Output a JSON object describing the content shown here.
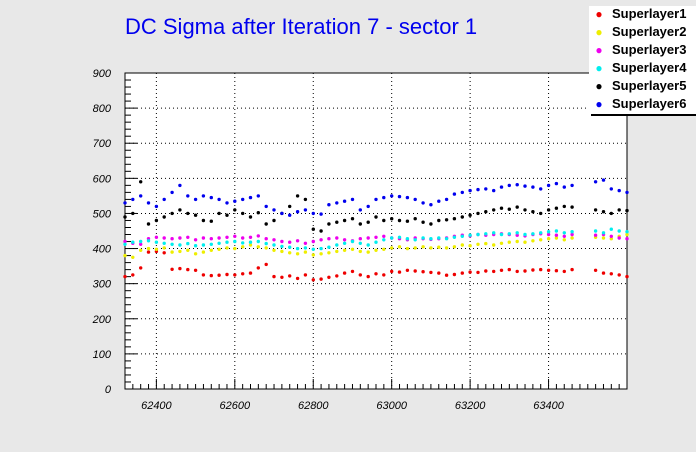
{
  "chart_data": {
    "type": "scatter",
    "title": "DC Sigma after Iteration 7 - sector 1",
    "xlabel": "",
    "ylabel": "",
    "xlim": [
      62320,
      63600
    ],
    "ylim": [
      0,
      900
    ],
    "x_ticks": [
      62400,
      62600,
      62800,
      63000,
      63200,
      63400
    ],
    "y_ticks": [
      0,
      100,
      200,
      300,
      400,
      500,
      600,
      700,
      800,
      900
    ],
    "grid": true,
    "legend_position": "top-right",
    "series": [
      {
        "name": "Superlayer1",
        "color": "#ee0000",
        "x": [
          62320,
          62340,
          62360,
          62380,
          62400,
          62420,
          62440,
          62460,
          62480,
          62500,
          62520,
          62540,
          62560,
          62580,
          62600,
          62620,
          62640,
          62660,
          62680,
          62700,
          62720,
          62740,
          62760,
          62780,
          62800,
          62820,
          62840,
          62860,
          62880,
          62900,
          62920,
          62940,
          62960,
          62980,
          63000,
          63020,
          63040,
          63060,
          63080,
          63100,
          63120,
          63140,
          63160,
          63180,
          63200,
          63220,
          63240,
          63260,
          63280,
          63300,
          63320,
          63340,
          63360,
          63380,
          63400,
          63420,
          63440,
          63460,
          63520,
          63540,
          63560,
          63580,
          63600
        ],
        "y": [
          320,
          325,
          345,
          390,
          392,
          388,
          341,
          343,
          340,
          338,
          325,
          323,
          324,
          326,
          325,
          328,
          330,
          345,
          355,
          320,
          318,
          322,
          315,
          325,
          311,
          313,
          318,
          322,
          330,
          335,
          325,
          320,
          328,
          325,
          335,
          333,
          338,
          336,
          334,
          332,
          330,
          324,
          326,
          330,
          333,
          332,
          336,
          335,
          338,
          340,
          335,
          336,
          339,
          340,
          338,
          337,
          335,
          340,
          338,
          330,
          328,
          325,
          320
        ]
      },
      {
        "name": "Superlayer2",
        "color": "#eeee00",
        "x": [
          62320,
          62340,
          62360,
          62380,
          62400,
          62420,
          62440,
          62460,
          62480,
          62500,
          62520,
          62540,
          62560,
          62580,
          62600,
          62620,
          62640,
          62660,
          62680,
          62700,
          62720,
          62740,
          62760,
          62780,
          62800,
          62820,
          62840,
          62860,
          62880,
          62900,
          62920,
          62940,
          62960,
          62980,
          63000,
          63020,
          63040,
          63060,
          63080,
          63100,
          63120,
          63140,
          63160,
          63180,
          63200,
          63220,
          63240,
          63260,
          63280,
          63300,
          63320,
          63340,
          63360,
          63380,
          63400,
          63420,
          63440,
          63460,
          63520,
          63540,
          63560,
          63580,
          63600
        ],
        "y": [
          380,
          375,
          395,
          400,
          398,
          402,
          390,
          392,
          395,
          385,
          390,
          395,
          398,
          402,
          400,
          405,
          410,
          405,
          402,
          395,
          392,
          388,
          385,
          390,
          382,
          385,
          388,
          392,
          395,
          398,
          392,
          390,
          395,
          398,
          402,
          405,
          400,
          402,
          405,
          402,
          404,
          402,
          405,
          410,
          408,
          412,
          414,
          410,
          415,
          418,
          420,
          418,
          422,
          425,
          428,
          430,
          425,
          430,
          432,
          430,
          428,
          435,
          440
        ]
      },
      {
        "name": "Superlayer3",
        "color": "#ee00ee",
        "x": [
          62320,
          62340,
          62360,
          62380,
          62400,
          62420,
          62440,
          62460,
          62480,
          62500,
          62520,
          62540,
          62560,
          62580,
          62600,
          62620,
          62640,
          62660,
          62680,
          62700,
          62720,
          62740,
          62760,
          62780,
          62800,
          62820,
          62840,
          62860,
          62880,
          62900,
          62920,
          62940,
          62960,
          62980,
          63000,
          63020,
          63040,
          63060,
          63080,
          63100,
          63120,
          63140,
          63160,
          63180,
          63200,
          63220,
          63240,
          63260,
          63280,
          63300,
          63320,
          63340,
          63360,
          63380,
          63400,
          63420,
          63440,
          63460,
          63520,
          63540,
          63560,
          63580,
          63600
        ],
        "y": [
          420,
          415,
          412,
          428,
          432,
          430,
          428,
          430,
          432,
          425,
          430,
          428,
          430,
          432,
          435,
          430,
          432,
          436,
          428,
          425,
          420,
          418,
          422,
          415,
          420,
          425,
          428,
          430,
          425,
          422,
          428,
          430,
          432,
          435,
          430,
          428,
          425,
          430,
          428,
          426,
          428,
          430,
          435,
          438,
          436,
          440,
          438,
          440,
          442,
          440,
          438,
          436,
          440,
          442,
          440,
          438,
          435,
          440,
          438,
          440,
          435,
          430,
          428
        ]
      },
      {
        "name": "Superlayer4",
        "color": "#00eeee",
        "x": [
          62320,
          62340,
          62360,
          62380,
          62400,
          62420,
          62440,
          62460,
          62480,
          62500,
          62520,
          62540,
          62560,
          62580,
          62600,
          62620,
          62640,
          62660,
          62680,
          62700,
          62720,
          62740,
          62760,
          62780,
          62800,
          62820,
          62840,
          62860,
          62880,
          62900,
          62920,
          62940,
          62960,
          62980,
          63000,
          63020,
          63040,
          63060,
          63080,
          63100,
          63120,
          63140,
          63160,
          63180,
          63200,
          63220,
          63240,
          63260,
          63280,
          63300,
          63320,
          63340,
          63360,
          63380,
          63400,
          63420,
          63440,
          63460,
          63520,
          63540,
          63560,
          63580,
          63600
        ],
        "y": [
          412,
          418,
          420,
          422,
          418,
          415,
          412,
          410,
          414,
          408,
          410,
          412,
          415,
          418,
          420,
          416,
          418,
          420,
          414,
          410,
          406,
          404,
          400,
          402,
          398,
          400,
          404,
          410,
          415,
          420,
          415,
          410,
          418,
          425,
          430,
          432,
          428,
          425,
          430,
          428,
          430,
          428,
          432,
          435,
          438,
          440,
          442,
          445,
          440,
          442,
          445,
          440,
          442,
          445,
          448,
          450,
          445,
          448,
          450,
          445,
          455,
          450,
          448
        ]
      },
      {
        "name": "Superlayer5",
        "color": "#000000",
        "x": [
          62320,
          62340,
          62360,
          62380,
          62400,
          62420,
          62440,
          62460,
          62480,
          62500,
          62520,
          62540,
          62560,
          62580,
          62600,
          62620,
          62640,
          62660,
          62680,
          62700,
          62720,
          62740,
          62760,
          62780,
          62800,
          62820,
          62840,
          62860,
          62880,
          62900,
          62920,
          62940,
          62960,
          62980,
          63000,
          63020,
          63040,
          63060,
          63080,
          63100,
          63120,
          63140,
          63160,
          63180,
          63200,
          63220,
          63240,
          63260,
          63280,
          63300,
          63320,
          63340,
          63360,
          63380,
          63400,
          63420,
          63440,
          63460,
          63520,
          63540,
          63560,
          63580,
          63600
        ],
        "y": [
          490,
          500,
          590,
          470,
          480,
          490,
          500,
          510,
          500,
          495,
          480,
          478,
          500,
          495,
          510,
          500,
          490,
          502,
          470,
          480,
          500,
          520,
          550,
          540,
          455,
          450,
          470,
          475,
          480,
          485,
          470,
          475,
          490,
          480,
          485,
          480,
          478,
          485,
          475,
          470,
          480,
          482,
          485,
          490,
          495,
          500,
          505,
          510,
          515,
          512,
          518,
          510,
          505,
          500,
          510,
          515,
          520,
          518,
          510,
          505,
          500,
          510,
          508
        ]
      },
      {
        "name": "Superlayer6",
        "color": "#0000ee",
        "x": [
          62320,
          62340,
          62360,
          62380,
          62400,
          62420,
          62440,
          62460,
          62480,
          62500,
          62520,
          62540,
          62560,
          62580,
          62600,
          62620,
          62640,
          62660,
          62680,
          62700,
          62720,
          62740,
          62760,
          62780,
          62800,
          62820,
          62840,
          62860,
          62880,
          62900,
          62920,
          62940,
          62960,
          62980,
          63000,
          63020,
          63040,
          63060,
          63080,
          63100,
          63120,
          63140,
          63160,
          63180,
          63200,
          63220,
          63240,
          63260,
          63280,
          63300,
          63320,
          63340,
          63360,
          63380,
          63400,
          63420,
          63440,
          63460,
          63520,
          63540,
          63560,
          63580,
          63600
        ],
        "y": [
          530,
          540,
          550,
          530,
          520,
          540,
          560,
          580,
          550,
          540,
          550,
          545,
          540,
          530,
          535,
          540,
          545,
          550,
          520,
          510,
          500,
          495,
          505,
          510,
          500,
          498,
          525,
          530,
          535,
          540,
          510,
          520,
          540,
          545,
          550,
          548,
          545,
          540,
          530,
          525,
          535,
          540,
          555,
          560,
          565,
          568,
          570,
          565,
          575,
          580,
          582,
          578,
          575,
          570,
          580,
          585,
          575,
          580,
          590,
          595,
          570,
          565,
          560
        ]
      }
    ]
  }
}
